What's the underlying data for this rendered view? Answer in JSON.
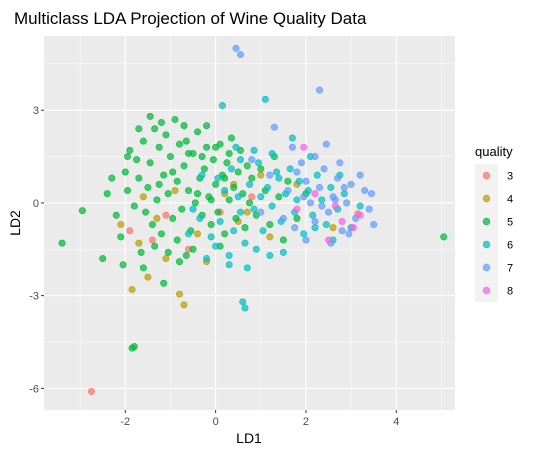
{
  "chart_data": {
    "type": "scatter",
    "title": "Multiclass LDA Projection of Wine Quality Data",
    "xlabel": "LD1",
    "ylabel": "LD2",
    "xlim": [
      -3.8,
      5.3
    ],
    "ylim": [
      -6.7,
      5.4
    ],
    "x_ticks": [
      {
        "value": -2,
        "label": "-2"
      },
      {
        "value": 0,
        "label": "0"
      },
      {
        "value": 2,
        "label": "2"
      },
      {
        "value": 4,
        "label": "4"
      }
    ],
    "y_ticks": [
      {
        "value": 3,
        "label": "3"
      },
      {
        "value": 0,
        "label": "0"
      },
      {
        "value": -3,
        "label": "-3"
      },
      {
        "value": -6,
        "label": "-6"
      }
    ],
    "grid": true,
    "legend": {
      "title": "quality",
      "position": "right"
    },
    "colors": {
      "3": "#F8766D",
      "4": "#B79F00",
      "5": "#00BA38",
      "6": "#00BFC4",
      "7": "#619CFF",
      "8": "#F564E3"
    },
    "series": [
      {
        "name": "3",
        "points": [
          [
            -2.75,
            -6.1
          ],
          [
            -1.9,
            -0.9
          ],
          [
            -1.4,
            -1.2
          ],
          [
            -0.6,
            -1.5
          ],
          [
            0.1,
            -0.3
          ],
          [
            0.8,
            0.2
          ],
          [
            3.15,
            -0.35
          ],
          [
            -1.1,
            -0.4
          ]
        ]
      },
      {
        "name": "4",
        "points": [
          [
            -1.85,
            -2.8
          ],
          [
            -1.5,
            -2.4
          ],
          [
            -0.8,
            -2.95
          ],
          [
            -0.7,
            -3.3
          ],
          [
            -1.3,
            -0.5
          ],
          [
            -1.7,
            -1.3
          ],
          [
            -0.4,
            -1.0
          ],
          [
            0.2,
            0.3
          ],
          [
            1.2,
            -1.1
          ],
          [
            1.8,
            0.6
          ],
          [
            -0.9,
            0.4
          ],
          [
            0.5,
            -0.6
          ],
          [
            -1.1,
            -1.8
          ],
          [
            2.6,
            -0.8
          ],
          [
            -0.2,
            -1.9
          ],
          [
            -1.6,
            0.2
          ],
          [
            1.0,
            0.9
          ],
          [
            0.4,
            0.6
          ],
          [
            -2.1,
            -0.7
          ],
          [
            0.7,
            -0.3
          ]
        ]
      },
      {
        "name": "5",
        "points": [
          [
            -1.8,
            -4.65
          ],
          [
            -1.85,
            -4.7
          ],
          [
            -3.4,
            -1.3
          ],
          [
            -2.95,
            -0.25
          ],
          [
            -2.4,
            0.3
          ],
          [
            -2.2,
            -0.4
          ],
          [
            -2.1,
            -1.1
          ],
          [
            -2.0,
            1.0
          ],
          [
            -1.9,
            1.7
          ],
          [
            -1.8,
            -0.1
          ],
          [
            -1.7,
            0.8
          ],
          [
            -1.65,
            -1.6
          ],
          [
            -1.6,
            2.0
          ],
          [
            -1.5,
            0.5
          ],
          [
            -1.45,
            1.3
          ],
          [
            -1.4,
            -0.7
          ],
          [
            -1.35,
            2.4
          ],
          [
            -1.3,
            0.1
          ],
          [
            -1.25,
            1.8
          ],
          [
            -1.2,
            -1.0
          ],
          [
            -1.15,
            0.9
          ],
          [
            -1.1,
            2.2
          ],
          [
            -1.05,
            0.3
          ],
          [
            -1.0,
            1.5
          ],
          [
            -0.95,
            -0.5
          ],
          [
            -0.9,
            2.7
          ],
          [
            -0.85,
            0.7
          ],
          [
            -0.8,
            1.9
          ],
          [
            -0.75,
            -0.2
          ],
          [
            -0.7,
            1.2
          ],
          [
            -0.65,
            2.0
          ],
          [
            -0.6,
            0.4
          ],
          [
            -0.55,
            -0.9
          ],
          [
            -0.5,
            1.6
          ],
          [
            -0.45,
            0.0
          ],
          [
            -0.4,
            2.3
          ],
          [
            -0.35,
            0.8
          ],
          [
            -0.3,
            -0.4
          ],
          [
            -0.25,
            1.1
          ],
          [
            -0.2,
            1.8
          ],
          [
            -0.15,
            0.2
          ],
          [
            -0.1,
            -0.7
          ],
          [
            -0.05,
            1.4
          ],
          [
            0.0,
            0.6
          ],
          [
            0.05,
            -0.3
          ],
          [
            0.1,
            1.9
          ],
          [
            0.15,
            0.9
          ],
          [
            0.2,
            -1.0
          ],
          [
            0.25,
            1.3
          ],
          [
            0.3,
            0.1
          ],
          [
            0.35,
            2.1
          ],
          [
            0.4,
            0.5
          ],
          [
            0.45,
            -0.5
          ],
          [
            0.5,
            1.0
          ],
          [
            0.55,
            1.7
          ],
          [
            0.6,
            0.3
          ],
          [
            0.65,
            -0.8
          ],
          [
            0.7,
            1.2
          ],
          [
            0.75,
            0.0
          ],
          [
            0.8,
            0.8
          ],
          [
            0.9,
            -0.4
          ],
          [
            1.0,
            1.1
          ],
          [
            1.1,
            0.4
          ],
          [
            1.2,
            -0.7
          ],
          [
            1.3,
            1.5
          ],
          [
            1.4,
            0.2
          ],
          [
            1.5,
            -1.2
          ],
          [
            1.6,
            0.7
          ],
          [
            1.8,
            -0.5
          ],
          [
            2.0,
            0.3
          ],
          [
            5.05,
            -1.1
          ],
          [
            -1.95,
            0.4
          ],
          [
            -1.75,
            1.4
          ],
          [
            -1.55,
            -0.3
          ],
          [
            -1.45,
            2.8
          ],
          [
            -1.25,
            0.6
          ],
          [
            -1.15,
            -2.6
          ],
          [
            -1.05,
            -1.6
          ],
          [
            -0.95,
            1.0
          ],
          [
            -0.85,
            -1.2
          ],
          [
            -0.7,
            2.5
          ],
          [
            -0.6,
            1.6
          ],
          [
            -0.5,
            -1.5
          ],
          [
            -0.4,
            0.3
          ],
          [
            -0.3,
            1.5
          ],
          [
            -0.2,
            2.5
          ],
          [
            -0.1,
            0.1
          ],
          [
            0.0,
            1.8
          ],
          [
            0.1,
            -1.4
          ],
          [
            0.2,
            0.8
          ],
          [
            0.3,
            1.6
          ],
          [
            -2.5,
            -1.8
          ],
          [
            -2.3,
            0.8
          ],
          [
            -2.05,
            -2.0
          ],
          [
            -1.6,
            -2.1
          ],
          [
            -0.8,
            -1.9
          ],
          [
            -1.35,
            -1.4
          ],
          [
            -0.65,
            -1.7
          ],
          [
            -1.95,
            1.5
          ],
          [
            -1.7,
            2.4
          ],
          [
            -1.2,
            2.6
          ]
        ]
      },
      {
        "name": "6",
        "points": [
          [
            0.65,
            -3.4
          ],
          [
            0.6,
            -3.2
          ],
          [
            0.15,
            3.15
          ],
          [
            1.1,
            3.35
          ],
          [
            -0.2,
            -1.8
          ],
          [
            0.0,
            -1.4
          ],
          [
            0.1,
            -0.6
          ],
          [
            0.2,
            0.4
          ],
          [
            0.3,
            -2.0
          ],
          [
            0.4,
            -0.9
          ],
          [
            0.5,
            0.2
          ],
          [
            0.55,
            1.4
          ],
          [
            0.65,
            -1.3
          ],
          [
            0.75,
            0.6
          ],
          [
            0.85,
            -0.2
          ],
          [
            0.95,
            1.3
          ],
          [
            1.05,
            -0.9
          ],
          [
            1.15,
            0.5
          ],
          [
            1.25,
            -0.1
          ],
          [
            1.35,
            1.0
          ],
          [
            1.45,
            -0.6
          ],
          [
            1.55,
            0.3
          ],
          [
            1.65,
            1.1
          ],
          [
            1.75,
            -0.3
          ],
          [
            1.85,
            0.7
          ],
          [
            1.95,
            -1.0
          ],
          [
            2.05,
            0.4
          ],
          [
            2.15,
            -0.4
          ],
          [
            2.25,
            0.9
          ],
          [
            2.35,
            0.1
          ],
          [
            2.45,
            -0.7
          ],
          [
            2.55,
            0.5
          ],
          [
            2.7,
            -0.2
          ],
          [
            2.85,
            0.3
          ],
          [
            3.0,
            -0.8
          ],
          [
            -0.5,
            -0.2
          ],
          [
            -0.3,
            0.9
          ],
          [
            -0.1,
            -1.1
          ],
          [
            0.45,
            1.8
          ],
          [
            0.85,
            1.7
          ],
          [
            1.25,
            1.6
          ],
          [
            1.7,
            2.1
          ],
          [
            2.1,
            1.5
          ],
          [
            1.2,
            -1.7
          ],
          [
            1.5,
            -1.6
          ],
          [
            0.9,
            -1.5
          ],
          [
            0.3,
            -1.7
          ],
          [
            -0.6,
            -1.0
          ],
          [
            -0.35,
            -0.5
          ],
          [
            0.7,
            -2.1
          ],
          [
            1.0,
            0.2
          ],
          [
            1.4,
            0.8
          ],
          [
            1.8,
            0.1
          ],
          [
            2.2,
            -0.8
          ],
          [
            2.6,
            -1.2
          ],
          [
            2.75,
            0.9
          ],
          [
            3.2,
            -0.1
          ],
          [
            0.05,
            0.8
          ],
          [
            0.35,
            1.1
          ],
          [
            0.55,
            -0.3
          ]
        ]
      },
      {
        "name": "7",
        "points": [
          [
            0.45,
            5.0
          ],
          [
            0.55,
            4.8
          ],
          [
            2.3,
            3.65
          ],
          [
            1.3,
            2.45
          ],
          [
            1.7,
            1.8
          ],
          [
            1.9,
            1.3
          ],
          [
            2.0,
            0.7
          ],
          [
            2.1,
            0.0
          ],
          [
            2.2,
            -0.6
          ],
          [
            2.3,
            0.5
          ],
          [
            2.4,
            1.1
          ],
          [
            2.5,
            -0.3
          ],
          [
            2.6,
            0.2
          ],
          [
            2.7,
            0.8
          ],
          [
            2.8,
            -0.9
          ],
          [
            2.9,
            0.0
          ],
          [
            3.0,
            0.6
          ],
          [
            3.1,
            -0.5
          ],
          [
            3.3,
            0.4
          ],
          [
            3.4,
            -0.2
          ],
          [
            3.5,
            -0.7
          ],
          [
            2.2,
            1.5
          ],
          [
            2.45,
            1.9
          ],
          [
            2.0,
            -1.2
          ],
          [
            1.6,
            0.4
          ],
          [
            1.8,
            1.0
          ],
          [
            2.55,
            -1.3
          ],
          [
            2.75,
            1.3
          ],
          [
            1.5,
            -0.5
          ],
          [
            1.2,
            0.9
          ],
          [
            1.0,
            -0.3
          ],
          [
            3.2,
            0.9
          ],
          [
            2.95,
            -1.0
          ],
          [
            2.65,
            0.1
          ],
          [
            2.35,
            -0.1
          ],
          [
            1.95,
            0.2
          ],
          [
            1.75,
            -0.8
          ],
          [
            0.8,
            1.4
          ],
          [
            3.45,
            0.3
          ],
          [
            2.85,
            0.5
          ]
        ]
      },
      {
        "name": "8",
        "points": [
          [
            1.95,
            1.8
          ],
          [
            2.8,
            -0.6
          ],
          [
            3.05,
            -0.8
          ],
          [
            3.2,
            -0.4
          ],
          [
            2.5,
            -1.2
          ],
          [
            1.8,
            -0.2
          ],
          [
            2.2,
            0.3
          ],
          [
            2.65,
            -0.1
          ]
        ]
      }
    ]
  }
}
